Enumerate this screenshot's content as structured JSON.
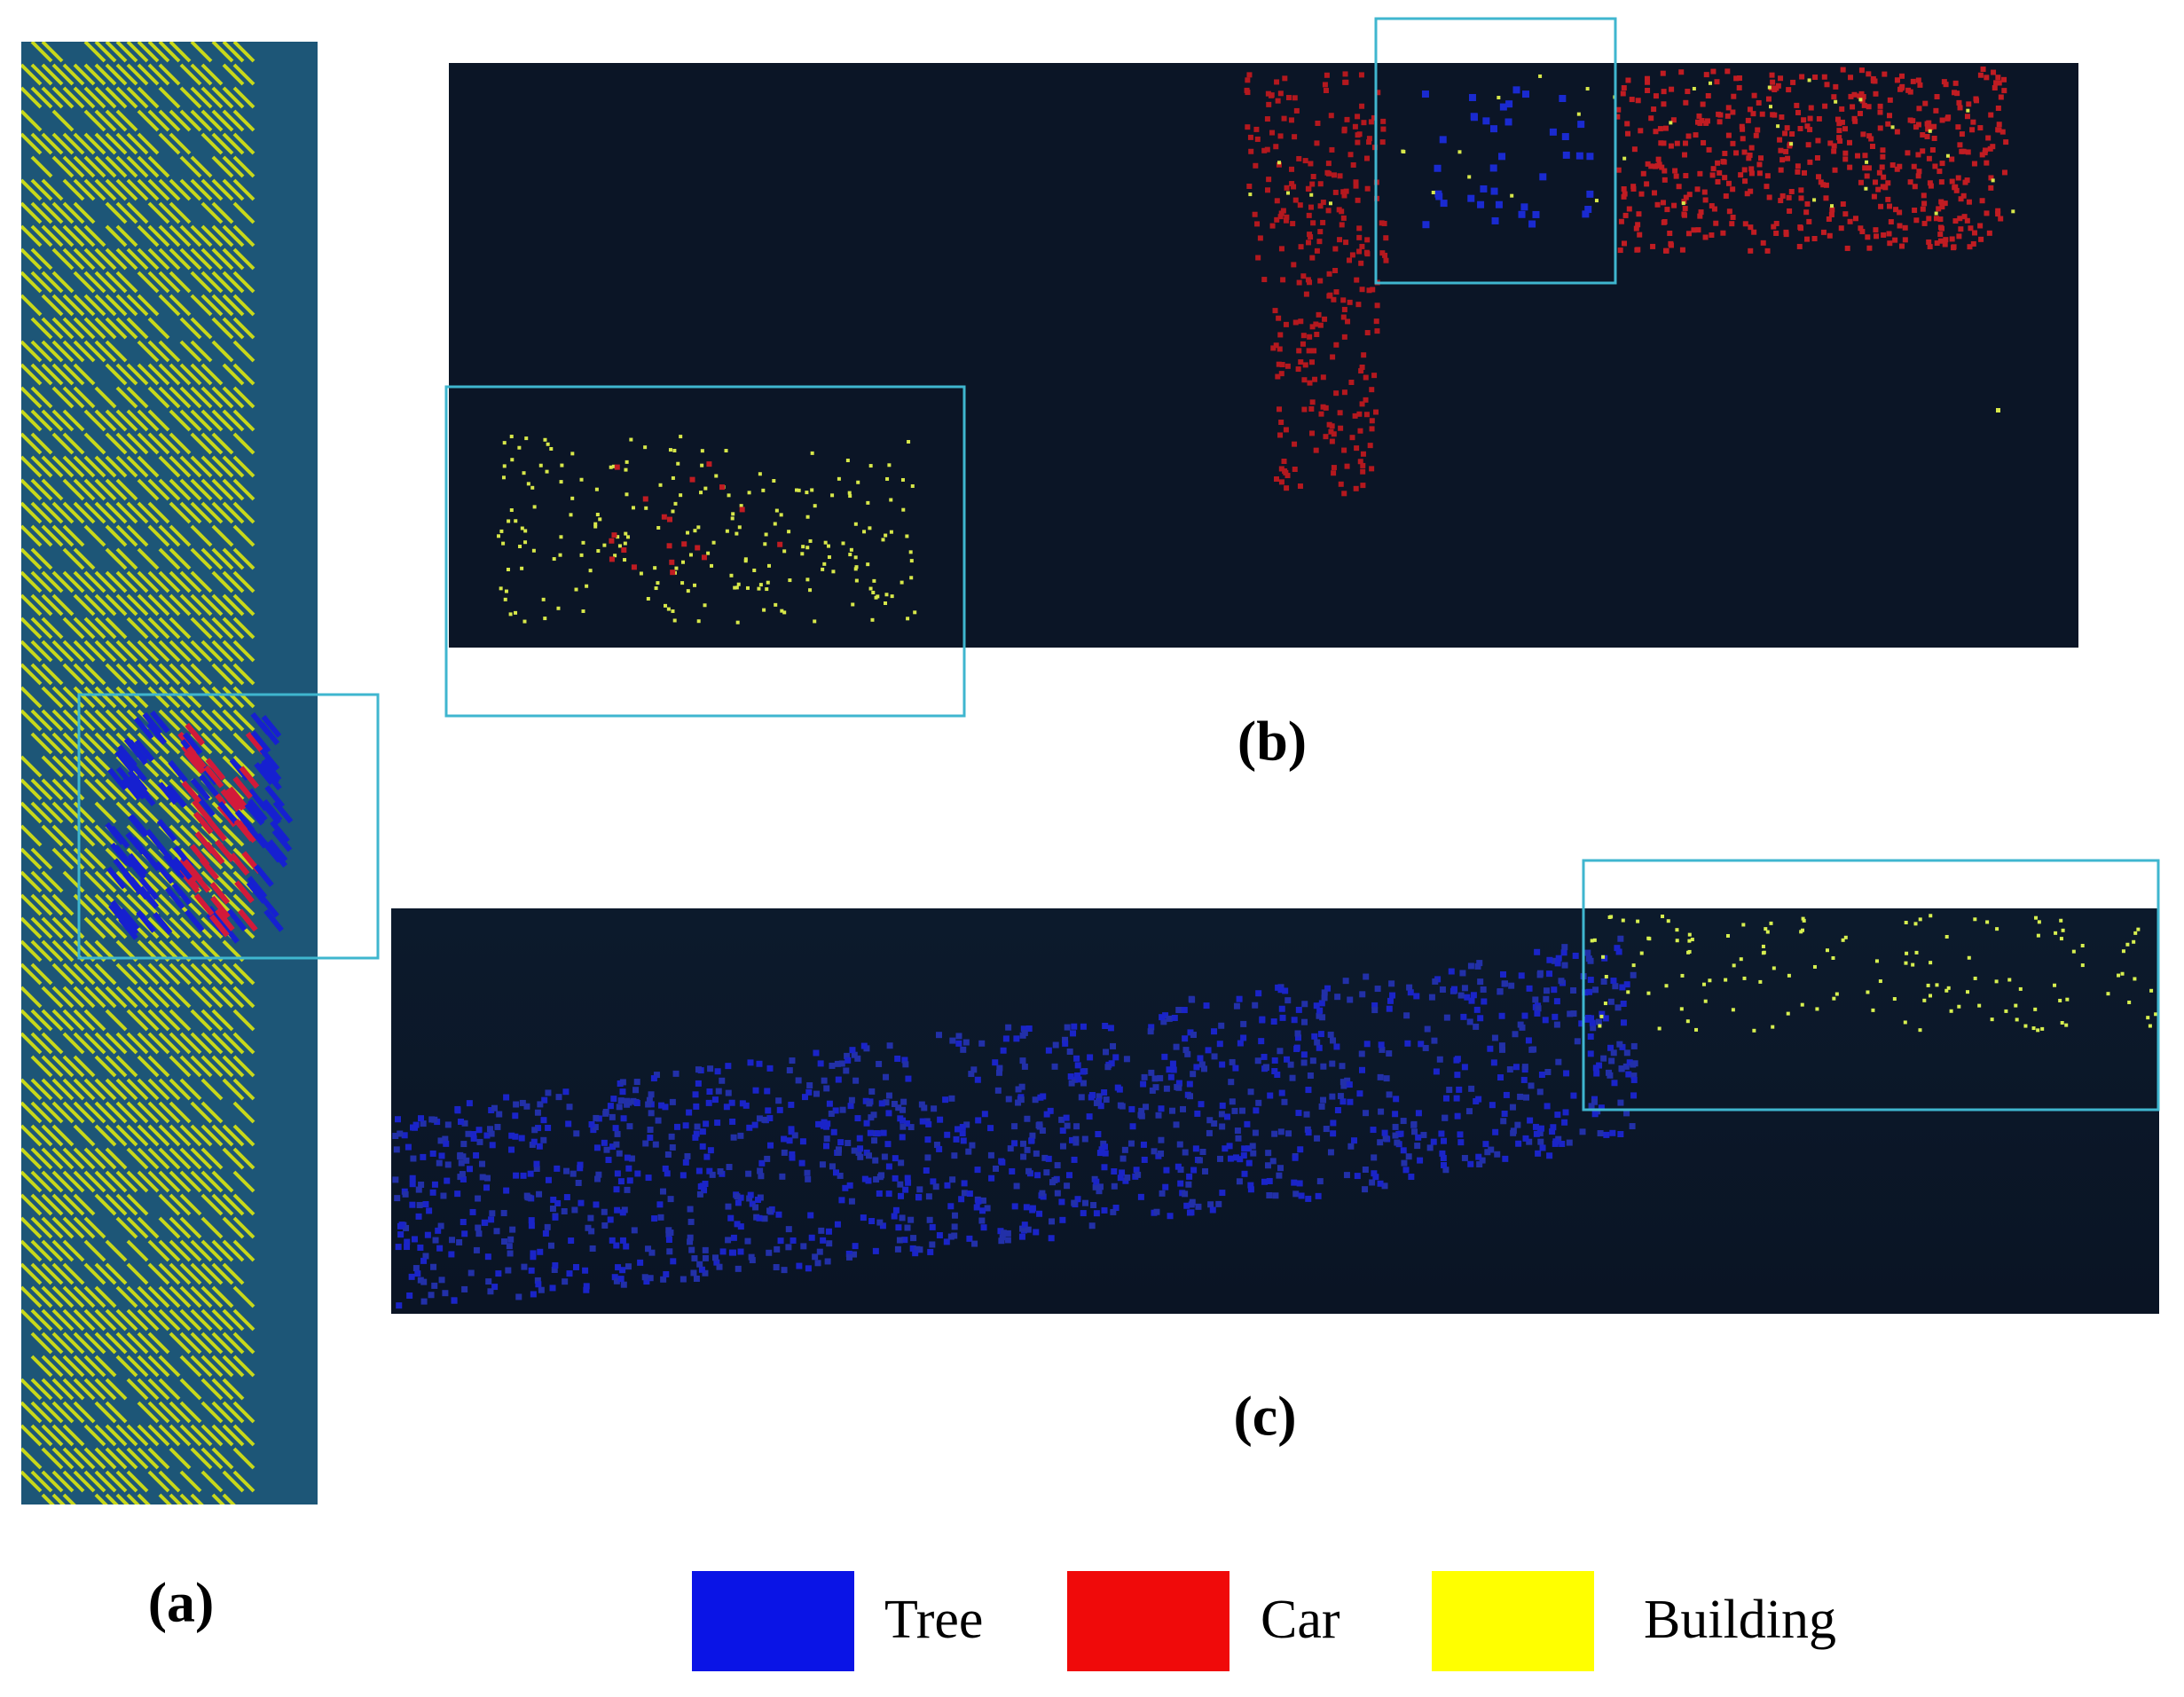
{
  "panels": {
    "a": {
      "label": "(a)"
    },
    "b": {
      "label": "(b)"
    },
    "c": {
      "label": "(c)"
    }
  },
  "legend": [
    {
      "label": "Tree",
      "color": "#0a14e6"
    },
    {
      "label": "Car",
      "color": "#f00a0a"
    },
    {
      "label": "Building",
      "color": "#ffff00"
    }
  ]
}
